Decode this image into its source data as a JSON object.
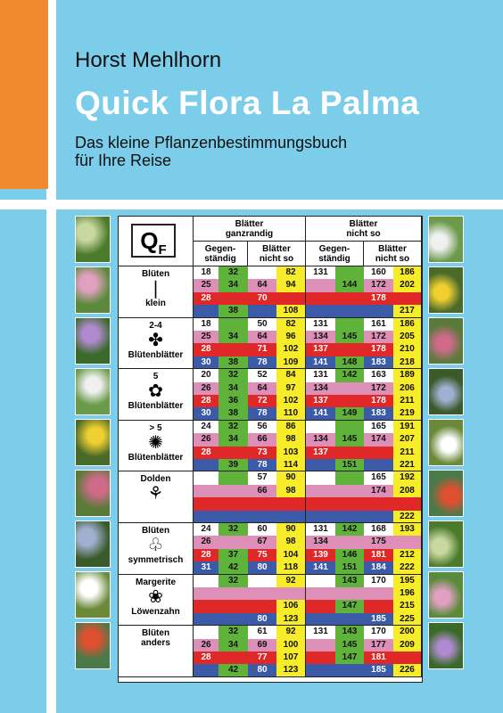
{
  "author": "Horst Mehlhorn",
  "title": "Quick Flora La Palma",
  "subtitle": [
    "Das kleine Pflanzenbestimmungsbuch",
    "für Ihre Reise"
  ],
  "table": {
    "logo": "QF",
    "group1": [
      "Blätter",
      "ganzrandig"
    ],
    "group2": [
      "Blätter",
      "nicht so"
    ],
    "sub": [
      [
        "Gegen-",
        "ständig"
      ],
      [
        "Blätter",
        "nicht so"
      ],
      [
        "Gegen-",
        "ständig"
      ],
      [
        "Blätter",
        "nicht so"
      ]
    ],
    "groups": [
      {
        "top": "Blüten",
        "glyph": "❘",
        "bottom": "klein",
        "rows": [
          [
            "18",
            "32",
            "",
            "82",
            "131",
            "",
            "160",
            "186"
          ],
          [
            "25",
            "34",
            "64",
            "94",
            "",
            "144",
            "172",
            "202"
          ],
          [
            "28",
            "",
            "70",
            "",
            "",
            "",
            "178",
            ""
          ],
          [
            "",
            "38",
            "",
            "108",
            "",
            "",
            "",
            "217"
          ]
        ]
      },
      {
        "top": "2-4",
        "glyph": "✤",
        "bottom": "Blütenblätter",
        "rows": [
          [
            "18",
            "",
            "50",
            "82",
            "131",
            "",
            "161",
            "186"
          ],
          [
            "25",
            "34",
            "64",
            "96",
            "134",
            "145",
            "172",
            "205"
          ],
          [
            "28",
            "",
            "71",
            "102",
            "137",
            "",
            "178",
            "210"
          ],
          [
            "30",
            "38",
            "78",
            "109",
            "141",
            "148",
            "183",
            "218"
          ]
        ]
      },
      {
        "top": "5",
        "glyph": "✿",
        "bottom": "Blütenblätter",
        "rows": [
          [
            "20",
            "32",
            "52",
            "84",
            "131",
            "142",
            "163",
            "189"
          ],
          [
            "26",
            "34",
            "64",
            "97",
            "134",
            "",
            "172",
            "206"
          ],
          [
            "28",
            "36",
            "72",
            "102",
            "137",
            "",
            "178",
            "211"
          ],
          [
            "30",
            "38",
            "78",
            "110",
            "141",
            "149",
            "183",
            "219"
          ]
        ]
      },
      {
        "top": "> 5",
        "glyph": "✺",
        "bottom": "Blütenblätter",
        "rows": [
          [
            "24",
            "32",
            "56",
            "86",
            "",
            "",
            "165",
            "191"
          ],
          [
            "26",
            "34",
            "66",
            "98",
            "134",
            "145",
            "174",
            "207"
          ],
          [
            "28",
            "",
            "73",
            "103",
            "137",
            "",
            "",
            "211"
          ],
          [
            "",
            "39",
            "78",
            "114",
            "",
            "151",
            "",
            "221"
          ]
        ]
      },
      {
        "top": "Dolden",
        "glyph": "⚘",
        "bottom": "",
        "rows": [
          [
            "",
            "",
            "57",
            "90",
            "",
            "",
            "165",
            "192"
          ],
          [
            "",
            "",
            "66",
            "98",
            "",
            "",
            "174",
            "208"
          ],
          [
            "",
            "",
            "",
            "",
            "",
            "",
            "",
            ""
          ],
          [
            "",
            "",
            "",
            "",
            "",
            "",
            "",
            "222"
          ]
        ]
      },
      {
        "top": "Blüten",
        "glyph": "♧",
        "bottom": "symmetrisch",
        "rows": [
          [
            "24",
            "32",
            "60",
            "90",
            "131",
            "142",
            "168",
            "193"
          ],
          [
            "26",
            "",
            "67",
            "98",
            "134",
            "",
            "175",
            ""
          ],
          [
            "28",
            "37",
            "75",
            "104",
            "139",
            "146",
            "181",
            "212"
          ],
          [
            "31",
            "42",
            "80",
            "118",
            "141",
            "151",
            "184",
            "222"
          ]
        ]
      },
      {
        "top": "Margerite",
        "glyph": "❀",
        "bottom": "Löwenzahn",
        "rows": [
          [
            "",
            "32",
            "",
            "92",
            "",
            "143",
            "170",
            "195"
          ],
          [
            "",
            "",
            "",
            "",
            "",
            "",
            "",
            "196"
          ],
          [
            "",
            "",
            "",
            "106",
            "",
            "147",
            "",
            "215"
          ],
          [
            "",
            "",
            "80",
            "123",
            "",
            "",
            "185",
            "225"
          ]
        ]
      },
      {
        "top": "Blüten",
        "glyph": "",
        "bottom": "anders",
        "rows": [
          [
            "",
            "32",
            "61",
            "92",
            "131",
            "143",
            "170",
            "200"
          ],
          [
            "26",
            "34",
            "69",
            "100",
            "",
            "145",
            "177",
            "209"
          ],
          [
            "28",
            "",
            "77",
            "107",
            "",
            "147",
            "181",
            ""
          ],
          [
            "",
            "42",
            "80",
            "123",
            "",
            "",
            "185",
            "226"
          ]
        ]
      }
    ]
  },
  "colors": {
    "white": "#ffffff",
    "pink": "#dd8fb8",
    "red": "#e02828",
    "blue": "#3b5aa8",
    "yellow": "#f7ec2a",
    "green": "#5fb23a",
    "orange": "#f08a2e",
    "accent_blue": "#7ccdea"
  }
}
